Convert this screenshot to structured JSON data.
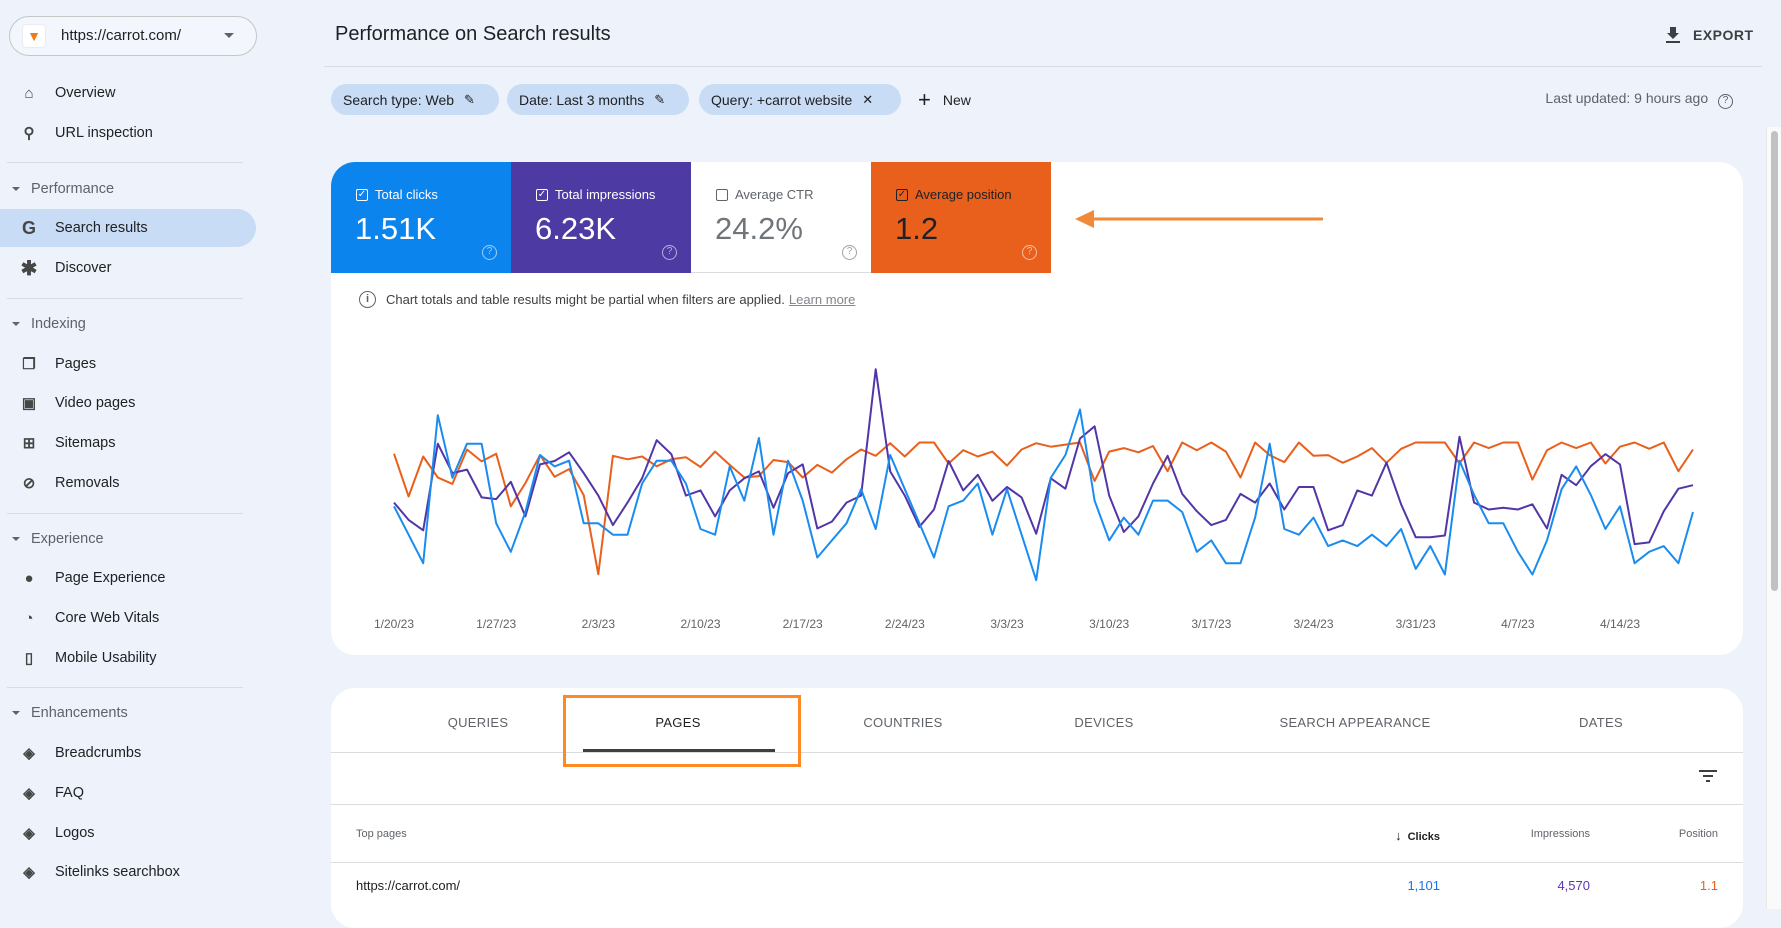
{
  "property": {
    "url": "https://carrot.com/",
    "logo_icon": "carrot-icon"
  },
  "sidebar": {
    "top_items": [
      {
        "label": "Overview",
        "icon": "home-icon"
      },
      {
        "label": "URL inspection",
        "icon": "search-icon"
      }
    ],
    "sections": [
      {
        "label": "Performance",
        "items": [
          {
            "label": "Search results",
            "icon": "google-g-icon",
            "active": true
          },
          {
            "label": "Discover",
            "icon": "asterisk-icon"
          }
        ]
      },
      {
        "label": "Indexing",
        "items": [
          {
            "label": "Pages",
            "icon": "pages-icon"
          },
          {
            "label": "Video pages",
            "icon": "video-page-icon"
          },
          {
            "label": "Sitemaps",
            "icon": "sitemap-icon"
          },
          {
            "label": "Removals",
            "icon": "eye-off-icon"
          }
        ]
      },
      {
        "label": "Experience",
        "items": [
          {
            "label": "Page Experience",
            "icon": "page-experience-icon"
          },
          {
            "label": "Core Web Vitals",
            "icon": "gauge-icon"
          },
          {
            "label": "Mobile Usability",
            "icon": "phone-icon"
          }
        ]
      },
      {
        "label": "Enhancements",
        "items": [
          {
            "label": "Breadcrumbs",
            "icon": "layers-icon"
          },
          {
            "label": "FAQ",
            "icon": "layers-icon"
          },
          {
            "label": "Logos",
            "icon": "layers-icon"
          },
          {
            "label": "Sitelinks searchbox",
            "icon": "layers-icon"
          }
        ]
      }
    ]
  },
  "header": {
    "title": "Performance on Search results",
    "export_label": "EXPORT"
  },
  "filters": {
    "chips": [
      {
        "label": "Search type: Web",
        "action_icon": "pencil-icon"
      },
      {
        "label": "Date: Last 3 months",
        "action_icon": "pencil-icon"
      },
      {
        "label": "Query: +carrot website",
        "action_icon": "close-icon"
      }
    ],
    "new_label": "New",
    "last_updated": "Last updated: 9 hours ago"
  },
  "metrics": [
    {
      "label": "Total clicks",
      "value": "1.51K",
      "checked": true,
      "color": "#0b84ee"
    },
    {
      "label": "Total impressions",
      "value": "6.23K",
      "checked": true,
      "color": "#4d3aa2"
    },
    {
      "label": "Average CTR",
      "value": "24.2%",
      "checked": false,
      "color": "#ffffff"
    },
    {
      "label": "Average position",
      "value": "1.2",
      "checked": true,
      "color": "#e8601c"
    }
  ],
  "notice": {
    "text": "Chart totals and table results might be partial when filters are applied.",
    "link": "Learn more"
  },
  "annotation": {
    "arrow_color": "#f08a38",
    "box_color": "#ff8a24"
  },
  "chart_data": {
    "type": "line",
    "grid": false,
    "x": [
      "1/20/23",
      "1/21/23",
      "1/22/23",
      "1/23/23",
      "1/24/23",
      "1/25/23",
      "1/26/23",
      "1/27/23",
      "1/28/23",
      "1/29/23",
      "1/30/23",
      "1/31/23",
      "2/1/23",
      "2/2/23",
      "2/3/23",
      "2/4/23",
      "2/5/23",
      "2/6/23",
      "2/7/23",
      "2/8/23",
      "2/9/23",
      "2/10/23",
      "2/11/23",
      "2/12/23",
      "2/13/23",
      "2/14/23",
      "2/15/23",
      "2/16/23",
      "2/17/23",
      "2/18/23",
      "2/19/23",
      "2/20/23",
      "2/21/23",
      "2/22/23",
      "2/23/23",
      "2/24/23",
      "2/25/23",
      "2/26/23",
      "2/27/23",
      "2/28/23",
      "3/1/23",
      "3/2/23",
      "3/3/23",
      "3/4/23",
      "3/5/23",
      "3/6/23",
      "3/7/23",
      "3/8/23",
      "3/9/23",
      "3/10/23",
      "3/11/23",
      "3/12/23",
      "3/13/23",
      "3/14/23",
      "3/15/23",
      "3/16/23",
      "3/17/23",
      "3/18/23",
      "3/19/23",
      "3/20/23",
      "3/21/23",
      "3/22/23",
      "3/23/23",
      "3/24/23",
      "3/25/23",
      "3/26/23",
      "3/27/23",
      "3/28/23",
      "3/29/23",
      "3/30/23",
      "3/31/23",
      "4/1/23",
      "4/2/23",
      "4/3/23",
      "4/4/23",
      "4/5/23",
      "4/6/23",
      "4/7/23",
      "4/8/23",
      "4/9/23",
      "4/10/23",
      "4/11/23",
      "4/12/23",
      "4/13/23",
      "4/14/23",
      "4/15/23",
      "4/16/23",
      "4/17/23",
      "4/18/23",
      "4/19/23"
    ],
    "x_tick_labels": [
      "1/20/23",
      "1/27/23",
      "2/3/23",
      "2/10/23",
      "2/17/23",
      "2/24/23",
      "3/3/23",
      "3/10/23",
      "3/17/23",
      "3/24/23",
      "3/31/23",
      "4/7/23",
      "4/14/23"
    ],
    "series": [
      {
        "name": "Total clicks",
        "color": "#1a8cf0",
        "ylim": [
          0,
          42
        ],
        "values": [
          17,
          12,
          7,
          33,
          22,
          28,
          28,
          14,
          9,
          16,
          26,
          24,
          25,
          14,
          14,
          12,
          12,
          21,
          25,
          25,
          21,
          13,
          12,
          24,
          18,
          29,
          12,
          25,
          18,
          8,
          11,
          14,
          20,
          13,
          26,
          20,
          14,
          8,
          17,
          18,
          21,
          12,
          20,
          12,
          4,
          22,
          26,
          34,
          18,
          11,
          15,
          12,
          18,
          18,
          16,
          9,
          11,
          7,
          7,
          15,
          28,
          13,
          12,
          15,
          10,
          11,
          10,
          12,
          10,
          13,
          6,
          10,
          5,
          25,
          19,
          14,
          14,
          9,
          5,
          11,
          20,
          24,
          19,
          13,
          17,
          7,
          9,
          10,
          7,
          16
        ]
      },
      {
        "name": "Total impressions",
        "color": "#5236a8",
        "ylim": [
          8,
          146
        ],
        "values": [
          66,
          56,
          50,
          100,
          83,
          85,
          69,
          68,
          78,
          58,
          88,
          90,
          95,
          83,
          70,
          53,
          66,
          80,
          102,
          94,
          70,
          73,
          58,
          73,
          80,
          84,
          63,
          83,
          88,
          51,
          55,
          66,
          70,
          143,
          84,
          70,
          52,
          62,
          90,
          73,
          82,
          67,
          75,
          69,
          48,
          80,
          74,
          103,
          110,
          70,
          49,
          58,
          77,
          93,
          71,
          61,
          53,
          56,
          71,
          66,
          77,
          62,
          75,
          75,
          50,
          53,
          73,
          70,
          89,
          65,
          46,
          46,
          47,
          104,
          66,
          62,
          63,
          62,
          65,
          51,
          82,
          76,
          87,
          94,
          88,
          42,
          43,
          61,
          74,
          76
        ]
      },
      {
        "name": "Average position",
        "color": "#e8601c",
        "ylim": [
          3.29,
          -0.12
        ],
        "values": [
          1.16,
          1.77,
          1.2,
          1.5,
          1.59,
          1.1,
          1.27,
          1.16,
          1.91,
          1.58,
          1.18,
          1.49,
          1.38,
          1.75,
          2.88,
          1.19,
          1.24,
          1.2,
          1.34,
          1.24,
          1.21,
          1.35,
          1.13,
          1.32,
          1.5,
          1.48,
          1.25,
          1.28,
          1.5,
          1.32,
          1.43,
          1.24,
          1.1,
          1.19,
          1.01,
          1.2,
          1.0,
          1.0,
          1.3,
          1.11,
          1.2,
          1.13,
          1.33,
          1.1,
          1.01,
          1.06,
          1.03,
          1.0,
          1.55,
          1.13,
          1.08,
          1.14,
          1.05,
          1.41,
          1.0,
          1.11,
          1.0,
          1.13,
          1.5,
          1.0,
          1.18,
          1.28,
          1.0,
          1.19,
          1.18,
          1.29,
          1.2,
          1.08,
          1.29,
          1.09,
          1.0,
          1.0,
          1.0,
          1.3,
          1.0,
          1.08,
          1.0,
          1.0,
          1.53,
          1.11,
          1.0,
          1.08,
          1.0,
          1.3,
          1.06,
          1.0,
          1.09,
          1.0,
          1.41,
          1.1
        ]
      }
    ]
  },
  "table": {
    "tabs": [
      "QUERIES",
      "PAGES",
      "COUNTRIES",
      "DEVICES",
      "SEARCH APPEARANCE",
      "DATES"
    ],
    "active_tab": "PAGES",
    "columns": {
      "name": "Top pages",
      "clicks": "Clicks",
      "impressions": "Impressions",
      "position": "Position"
    },
    "rows": [
      {
        "page": "https://carrot.com/",
        "clicks": "1,101",
        "impressions": "4,570",
        "position": "1.1"
      }
    ]
  }
}
